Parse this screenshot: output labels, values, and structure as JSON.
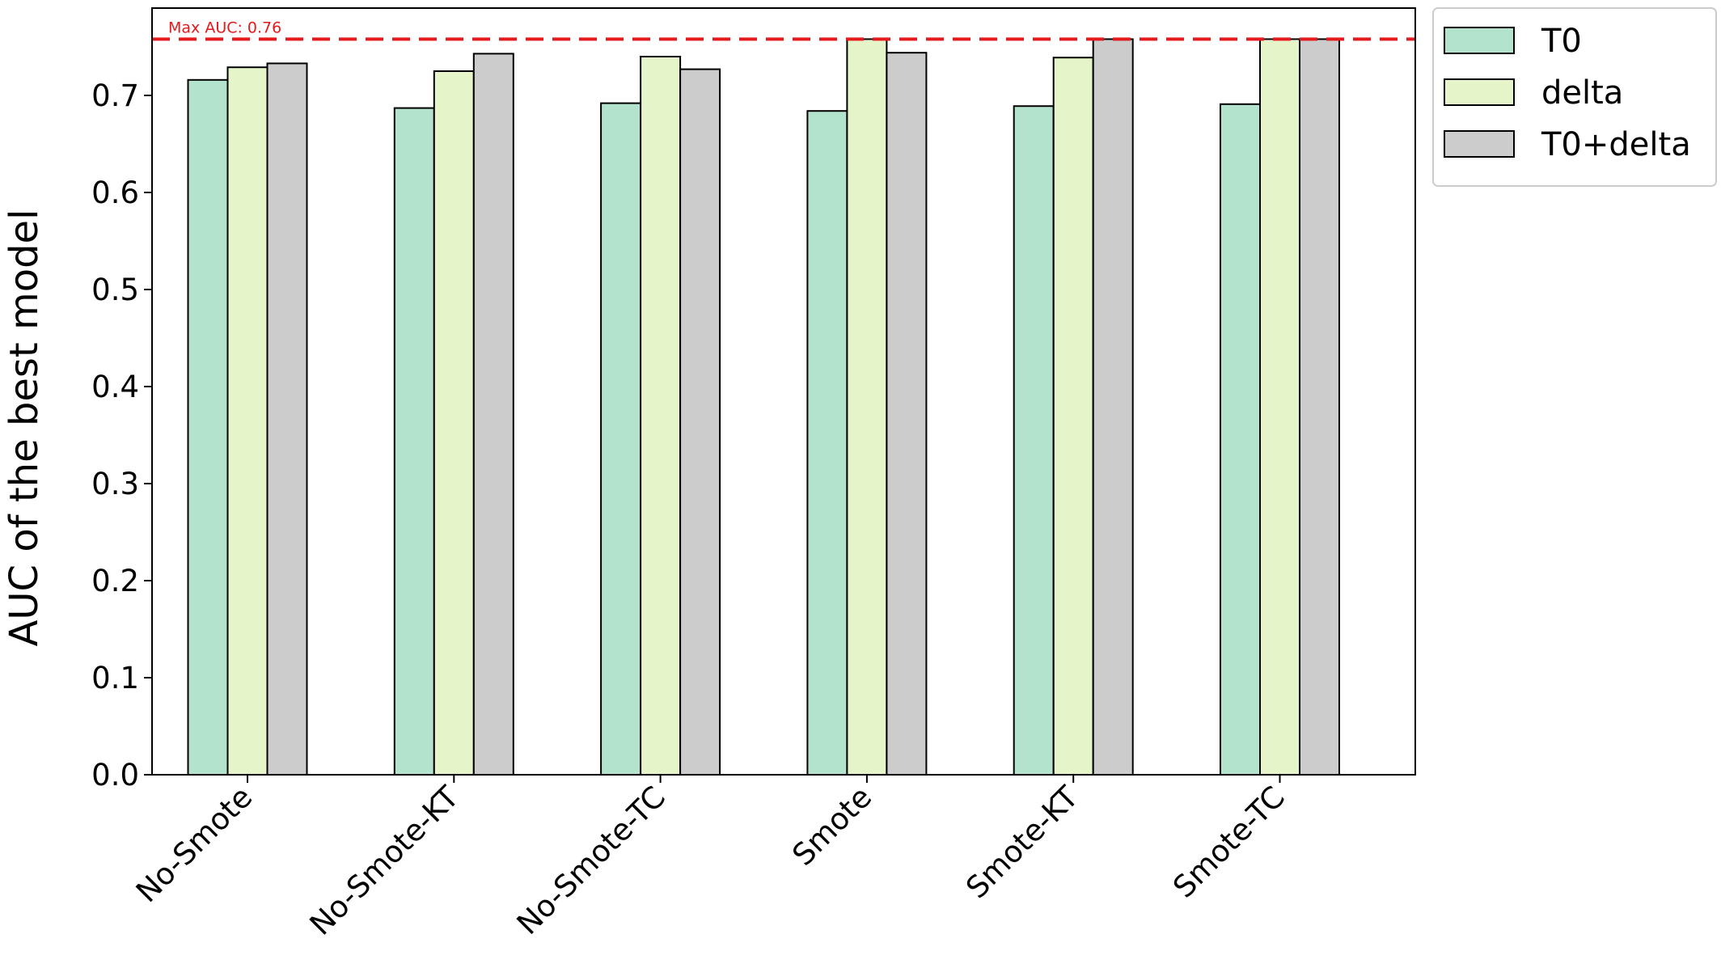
{
  "chart_data": {
    "type": "bar",
    "categories": [
      "No-Smote",
      "No-Smote-KT",
      "No-Smote-TC",
      "Smote",
      "Smote-KT",
      "Smote-TC"
    ],
    "series": [
      {
        "name": "T0",
        "color": "#b3e2cd",
        "values": [
          0.716,
          0.687,
          0.692,
          0.684,
          0.689,
          0.691
        ]
      },
      {
        "name": "delta",
        "color": "#e6f5c9",
        "values": [
          0.729,
          0.725,
          0.74,
          0.758,
          0.739,
          0.758
        ]
      },
      {
        "name": "T0+delta",
        "color": "#cccccc",
        "values": [
          0.733,
          0.743,
          0.727,
          0.744,
          0.758,
          0.758
        ]
      }
    ],
    "ylabel": "AUC of the best model",
    "xlabel": "",
    "ylim": [
      0,
      0.79
    ],
    "yticks": [
      0.0,
      0.1,
      0.2,
      0.3,
      0.4,
      0.5,
      0.6,
      0.7
    ],
    "ytick_labels": [
      "0.0",
      "0.1",
      "0.2",
      "0.3",
      "0.4",
      "0.5",
      "0.6",
      "0.7"
    ],
    "reference_line": {
      "value": 0.758,
      "label": "Max AUC: 0.76",
      "color": "#e41a1c",
      "style": "dashed"
    },
    "legend_position": "outside-top-right",
    "grid": false,
    "bar_edge_color": "#000000"
  }
}
